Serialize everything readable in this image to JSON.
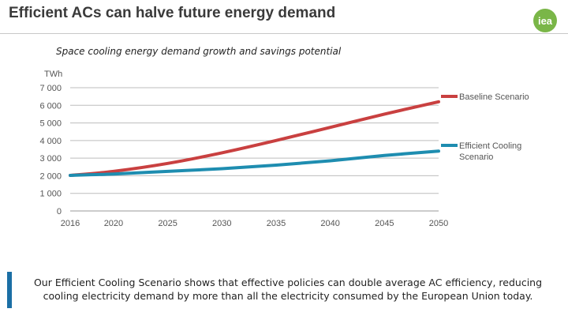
{
  "header": {
    "title": "Efficient ACs can halve future energy demand",
    "logo_text": "iea"
  },
  "footer": {
    "text": "Our Efficient Cooling Scenario shows that effective policies can double average AC efficiency, reducing cooling electricity demand by more than all the electricity consumed by the European Union today."
  },
  "colors": {
    "baseline": "#c94040",
    "efficient": "#1e8db0",
    "logo": "#7ab648",
    "accent_bar": "#1b6fa5"
  },
  "chart_data": {
    "type": "line",
    "title": "Space cooling energy demand growth and savings potential",
    "ylabel": "TWh",
    "xlabel": "",
    "ylim": [
      0,
      7000
    ],
    "yticks": [
      0,
      1000,
      2000,
      3000,
      4000,
      5000,
      6000,
      7000
    ],
    "ytick_labels": [
      "0",
      "1 000",
      "2 000",
      "3 000",
      "4 000",
      "5 000",
      "6 000",
      "7 000"
    ],
    "xticks": [
      2016,
      2020,
      2025,
      2030,
      2035,
      2040,
      2045,
      2050
    ],
    "grid": "horizontal",
    "legend": "right",
    "series": [
      {
        "name": "Baseline Scenario",
        "x": [
          2016,
          2020,
          2025,
          2030,
          2035,
          2040,
          2045,
          2050
        ],
        "values": [
          2020,
          2250,
          2700,
          3300,
          4000,
          4750,
          5500,
          6200
        ]
      },
      {
        "name": "Efficient Cooling Scenario",
        "x": [
          2016,
          2020,
          2025,
          2030,
          2035,
          2040,
          2045,
          2050
        ],
        "values": [
          2020,
          2100,
          2250,
          2400,
          2600,
          2850,
          3150,
          3400
        ]
      }
    ]
  }
}
